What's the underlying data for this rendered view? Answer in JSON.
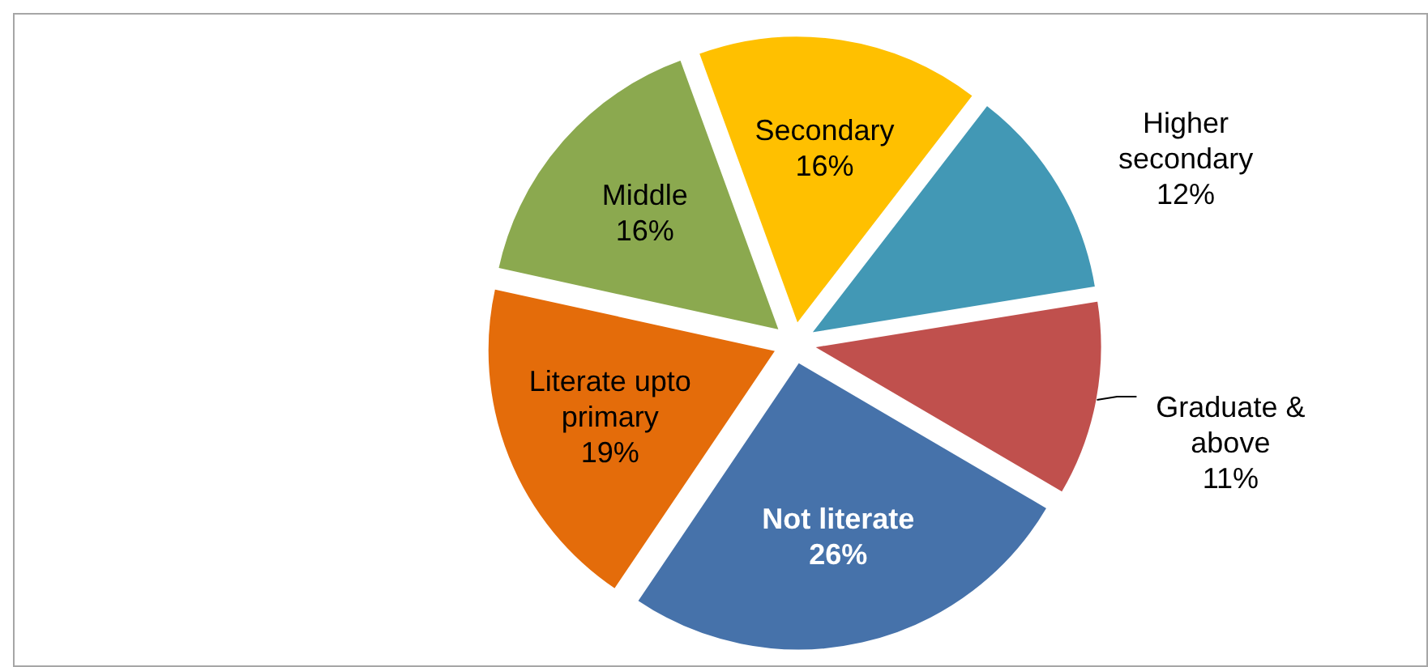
{
  "chart_data": {
    "type": "pie",
    "categories": [
      "Secondary",
      "Higher secondary",
      "Graduate & above",
      "Not literate",
      "Literate upto primary",
      "Middle"
    ],
    "values": [
      16,
      12,
      11,
      26,
      19,
      16
    ],
    "colors": [
      "#ffc000",
      "#4298b5",
      "#c0504d",
      "#4672aa",
      "#e46c0a",
      "#8ba94f"
    ],
    "value_labels": [
      "16%",
      "12%",
      "11%",
      "26%",
      "19%",
      "16%"
    ],
    "data_labels": true
  }
}
